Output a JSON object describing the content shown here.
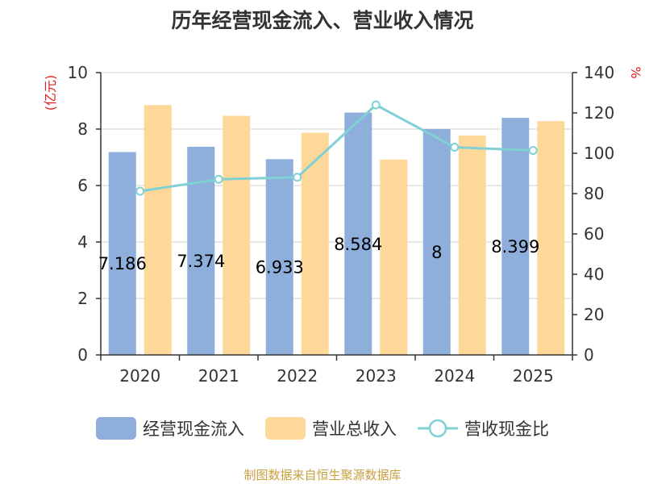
{
  "title": "历年经营现金流入、营业收入情况",
  "left_axis_unit": "(亿元)",
  "right_axis_unit": "%",
  "source_note": "制图数据来自恒生聚源数据库",
  "colors": {
    "cash_inflow": "#8eaedb",
    "revenue": "#fed899",
    "ratio": "#7fd1d4",
    "unit_text": "#e02020"
  },
  "chart_data": {
    "type": "bar",
    "categories": [
      "2020",
      "2021",
      "2022",
      "2023",
      "2024",
      "2025"
    ],
    "series": [
      {
        "name": "经营现金流入",
        "type": "bar",
        "axis": "left",
        "values": [
          7.186,
          7.374,
          6.933,
          8.584,
          8,
          8.399
        ],
        "labels": [
          "7.186",
          "7.374",
          "6.933",
          "8.584",
          "8",
          "8.399"
        ]
      },
      {
        "name": "营业总收入",
        "type": "bar",
        "axis": "left",
        "values": [
          8.85,
          8.47,
          7.87,
          6.92,
          7.77,
          8.28
        ]
      },
      {
        "name": "营收现金比",
        "type": "line",
        "axis": "right",
        "values": [
          81.2,
          87.1,
          88.1,
          124.0,
          103.0,
          101.4
        ]
      }
    ],
    "y_left": {
      "min": 0,
      "max": 10,
      "ticks": [
        "0",
        "2",
        "4",
        "6",
        "8",
        "10"
      ]
    },
    "y_right": {
      "min": 0,
      "max": 140,
      "ticks": [
        "0",
        "20",
        "40",
        "60",
        "80",
        "100",
        "120",
        "140"
      ]
    },
    "grid": true,
    "legend_position": "bottom"
  }
}
